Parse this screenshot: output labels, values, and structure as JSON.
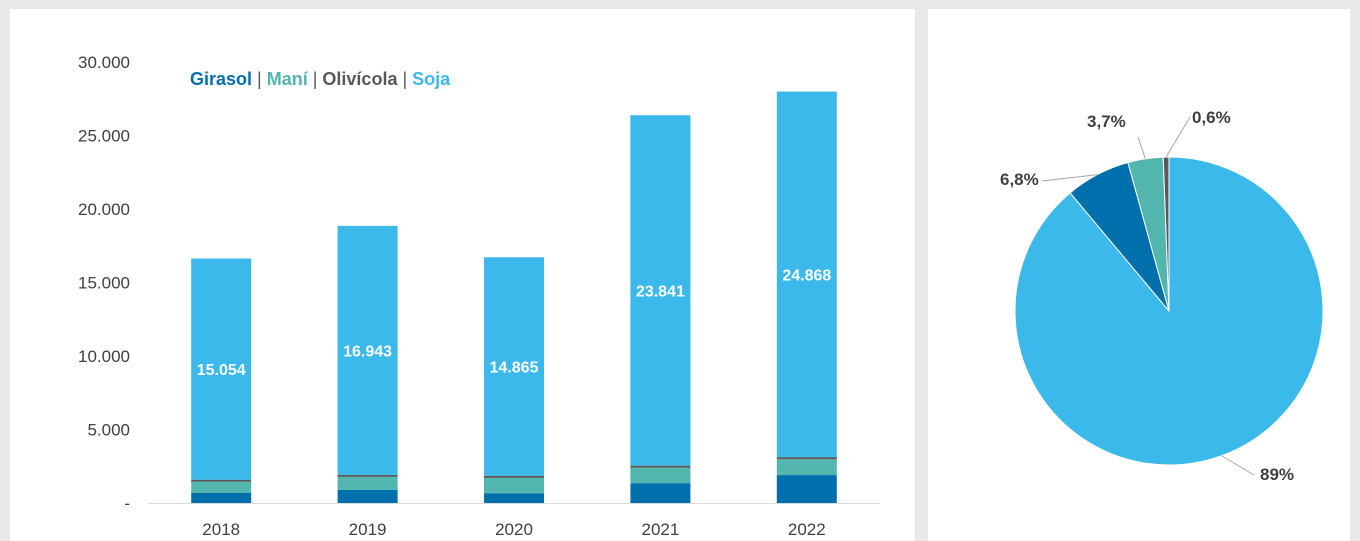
{
  "chart_data": [
    {
      "type": "bar",
      "stacked": true,
      "categories": [
        "2018",
        "2019",
        "2020",
        "2021",
        "2022"
      ],
      "ylim": [
        0,
        30000
      ],
      "yticks": [
        {
          "value": 0,
          "label": "-"
        },
        {
          "value": 5000,
          "label": "5.000"
        },
        {
          "value": 10000,
          "label": "10.000"
        },
        {
          "value": 15000,
          "label": "15.000"
        },
        {
          "value": 20000,
          "label": "20.000"
        },
        {
          "value": 25000,
          "label": "25.000"
        },
        {
          "value": 30000,
          "label": "30.000"
        }
      ],
      "grid": false,
      "legend_position": "top-left",
      "legend_separator": "|",
      "series": [
        {
          "name": "Girasol",
          "color": "#0070ad",
          "values": [
            700,
            900,
            650,
            1350,
            1900
          ]
        },
        {
          "name": "Maní",
          "color": "#52b5ae",
          "values": [
            750,
            880,
            1060,
            1050,
            1080
          ]
        },
        {
          "name": "Olivícola",
          "color": "#595959",
          "values": [
            130,
            130,
            140,
            140,
            140
          ]
        },
        {
          "name": "Soja",
          "color": "#3ab9ea",
          "values": [
            15054,
            16943,
            14865,
            23841,
            24868
          ],
          "data_labels": [
            "15.054",
            "16.943",
            "14.865",
            "23.841",
            "24.868"
          ]
        }
      ]
    },
    {
      "type": "pie",
      "slices": [
        {
          "label": "89%",
          "value": 89,
          "color": "#3ab9ea"
        },
        {
          "label": "6,8%",
          "value": 6.8,
          "color": "#0070ad"
        },
        {
          "label": "3,7%",
          "value": 3.7,
          "color": "#52b5ae"
        },
        {
          "label": "0,6%",
          "value": 0.6,
          "color": "#595959"
        }
      ]
    }
  ]
}
